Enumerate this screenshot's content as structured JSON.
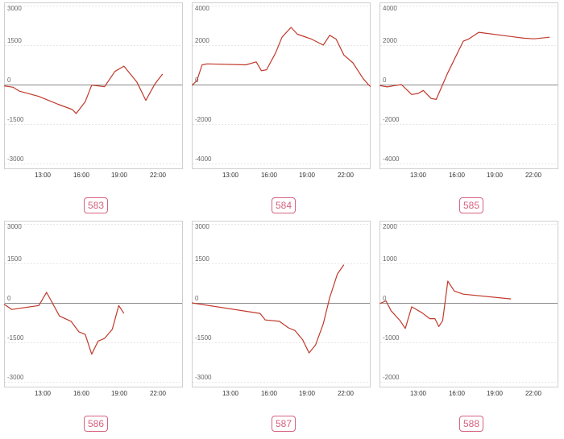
{
  "chart_data": [
    {
      "type": "line",
      "id_label": "583",
      "ylim": [
        -3000,
        3000
      ],
      "yticks": [
        3000,
        1500,
        0,
        -1500,
        -3000
      ],
      "ytick_labels": [
        "3000",
        "1500",
        "0",
        "-1500",
        "-3000"
      ],
      "xticks": [
        "13:00",
        "16:00",
        "19:00",
        "22:00"
      ],
      "line_color": "#c0392b",
      "series": [
        {
          "points": [
            [
              0,
              -50
            ],
            [
              0.7,
              -100
            ],
            [
              1.2,
              -250
            ],
            [
              2.7,
              -450
            ],
            [
              4.2,
              -750
            ],
            [
              5.3,
              -950
            ],
            [
              5.6,
              -1100
            ],
            [
              6.3,
              -650
            ],
            [
              6.8,
              -20
            ],
            [
              7.8,
              -80
            ],
            [
              8.6,
              500
            ],
            [
              9.3,
              700
            ],
            [
              10.3,
              100
            ],
            [
              11,
              -600
            ],
            [
              11.7,
              20
            ],
            [
              12.3,
              400
            ]
          ]
        }
      ]
    },
    {
      "type": "line",
      "id_label": "584",
      "ylim": [
        -4000,
        4000
      ],
      "yticks": [
        4000,
        2000,
        0,
        -2000,
        -4000
      ],
      "ytick_labels": [
        "4000",
        "2000",
        "0",
        "-2000",
        "-4000"
      ],
      "xticks": [
        "13:00",
        "16:00",
        "19:00",
        "22:00"
      ],
      "line_color": "#c0392b",
      "series": [
        {
          "points": [
            [
              0,
              -50
            ],
            [
              0.4,
              200
            ],
            [
              0.8,
              1000
            ],
            [
              1.2,
              1050
            ],
            [
              4.2,
              1000
            ],
            [
              5.0,
              1150
            ],
            [
              5.4,
              700
            ],
            [
              5.8,
              750
            ],
            [
              6.5,
              1600
            ],
            [
              7.0,
              2400
            ],
            [
              7.7,
              2900
            ],
            [
              8.2,
              2550
            ],
            [
              9.3,
              2300
            ],
            [
              10.2,
              2000
            ],
            [
              10.7,
              2500
            ],
            [
              11.2,
              2300
            ],
            [
              11.8,
              1500
            ],
            [
              12.5,
              1100
            ],
            [
              13.3,
              300
            ],
            [
              13.7,
              0
            ],
            [
              14.2,
              -300
            ],
            [
              14.7,
              300
            ],
            [
              15.5,
              1100
            ]
          ]
        }
      ]
    },
    {
      "type": "line",
      "id_label": "585",
      "ylim": [
        -4000,
        4000
      ],
      "yticks": [
        4000,
        2000,
        0,
        -2000,
        -4000
      ],
      "ytick_labels": [
        "4000",
        "2000",
        "0",
        "-2000",
        "-4000"
      ],
      "xticks": [
        "13:00",
        "16:00",
        "19:00",
        "22:00"
      ],
      "line_color": "#c0392b",
      "series": [
        {
          "points": [
            [
              0,
              -50
            ],
            [
              0.6,
              -120
            ],
            [
              1.2,
              -50
            ],
            [
              1.7,
              0
            ],
            [
              2.5,
              -500
            ],
            [
              3.0,
              -450
            ],
            [
              3.4,
              -300
            ],
            [
              4.0,
              -700
            ],
            [
              4.4,
              -750
            ],
            [
              5.3,
              600
            ],
            [
              6.5,
              2200
            ],
            [
              6.9,
              2300
            ],
            [
              7.7,
              2650
            ],
            [
              11.2,
              2350
            ],
            [
              12.0,
              2320
            ],
            [
              13.2,
              2400
            ]
          ]
        }
      ]
    },
    {
      "type": "line",
      "id_label": "586",
      "ylim": [
        -3000,
        3000
      ],
      "yticks": [
        3000,
        1500,
        0,
        -1500,
        -3000
      ],
      "ytick_labels": [
        "3000",
        "1500",
        "0",
        "-1500",
        "-3000"
      ],
      "xticks": [
        "13:00",
        "16:00",
        "19:00",
        "22:00"
      ],
      "line_color": "#c0392b",
      "series": [
        {
          "points": [
            [
              0,
              -50
            ],
            [
              0.6,
              -250
            ],
            [
              2.7,
              -100
            ],
            [
              3.3,
              400
            ],
            [
              4.3,
              -500
            ],
            [
              5.2,
              -700
            ],
            [
              5.8,
              -1100
            ],
            [
              6.3,
              -1200
            ],
            [
              6.8,
              -1950
            ],
            [
              7.3,
              -1450
            ],
            [
              7.8,
              -1350
            ],
            [
              8.4,
              -1000
            ],
            [
              8.9,
              -100
            ],
            [
              9.3,
              -400
            ]
          ]
        }
      ]
    },
    {
      "type": "line",
      "id_label": "587",
      "ylim": [
        -3000,
        3000
      ],
      "yticks": [
        3000,
        1500,
        0,
        -1500,
        -3000
      ],
      "ytick_labels": [
        "3000",
        "1500",
        "0",
        "-1500",
        "-3000"
      ],
      "xticks": [
        "13:00",
        "16:00",
        "19:00",
        "22:00"
      ],
      "line_color": "#c0392b",
      "series": [
        {
          "points": [
            [
              0,
              0
            ],
            [
              5.3,
              -400
            ],
            [
              5.7,
              -650
            ],
            [
              6.8,
              -700
            ],
            [
              7.5,
              -950
            ],
            [
              8.0,
              -1050
            ],
            [
              8.6,
              -1400
            ],
            [
              9.1,
              -1900
            ],
            [
              9.6,
              -1600
            ],
            [
              10.2,
              -800
            ],
            [
              10.7,
              200
            ],
            [
              11.3,
              1100
            ],
            [
              11.8,
              1450
            ]
          ]
        }
      ]
    },
    {
      "type": "line",
      "id_label": "588",
      "ylim": [
        -2000,
        2000
      ],
      "yticks": [
        2000,
        1000,
        0,
        -1000,
        -2000
      ],
      "ytick_labels": [
        "2000",
        "1000",
        "0",
        "-1000",
        "-2000"
      ],
      "xticks": [
        "13:00",
        "16:00",
        "19:00",
        "22:00"
      ],
      "line_color": "#c0392b",
      "series": [
        {
          "points": [
            [
              0,
              -20
            ],
            [
              0.5,
              50
            ],
            [
              0.9,
              -200
            ],
            [
              1.6,
              -450
            ],
            [
              2.0,
              -650
            ],
            [
              2.5,
              -100
            ],
            [
              3.3,
              -250
            ],
            [
              3.9,
              -400
            ],
            [
              4.3,
              -400
            ],
            [
              4.6,
              -600
            ],
            [
              4.9,
              -450
            ],
            [
              5.3,
              550
            ],
            [
              5.8,
              300
            ],
            [
              6.5,
              220
            ],
            [
              10.2,
              100
            ]
          ]
        }
      ]
    }
  ]
}
